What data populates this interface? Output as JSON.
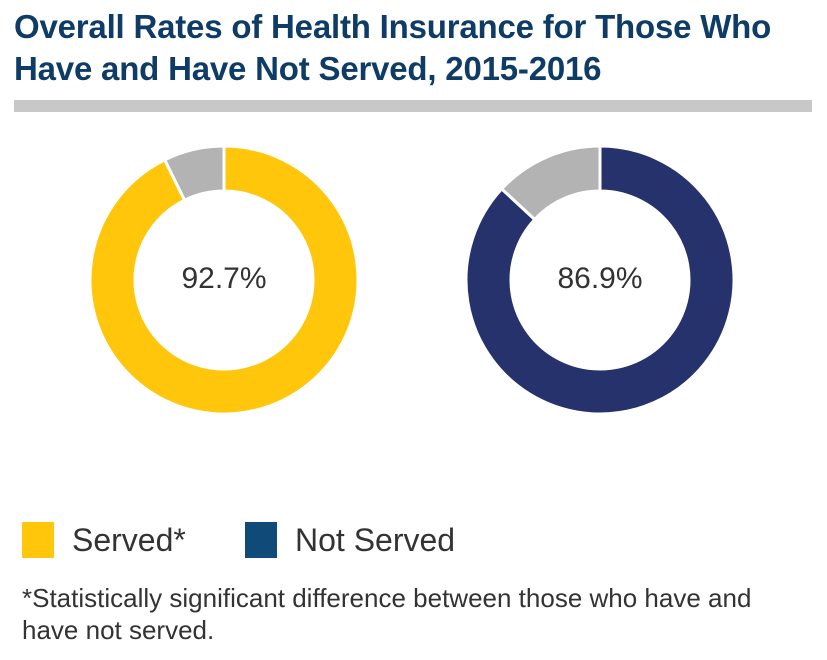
{
  "title": "Overall Rates of Health Insurance for Those Who Have and Have Not Served, 2015-2016",
  "chart_data": {
    "type": "pie",
    "variant": "donut",
    "charts": [
      {
        "series": "Served",
        "insured_percent": 92.7,
        "center_label": "92.7%",
        "color": "#ffc60b",
        "remainder_color": "#b3b3b3"
      },
      {
        "series": "Not Served",
        "insured_percent": 86.9,
        "center_label": "86.9%",
        "color": "#25326b",
        "remainder_color": "#b3b3b3"
      }
    ],
    "legend": {
      "placement": "bottom-left",
      "entries": [
        {
          "label": "Served*",
          "color": "#ffc60b"
        },
        {
          "label": "Not Served",
          "color": "#0f4a78"
        }
      ]
    },
    "footnote": "*Statistically significant difference between those who have and have not served."
  }
}
